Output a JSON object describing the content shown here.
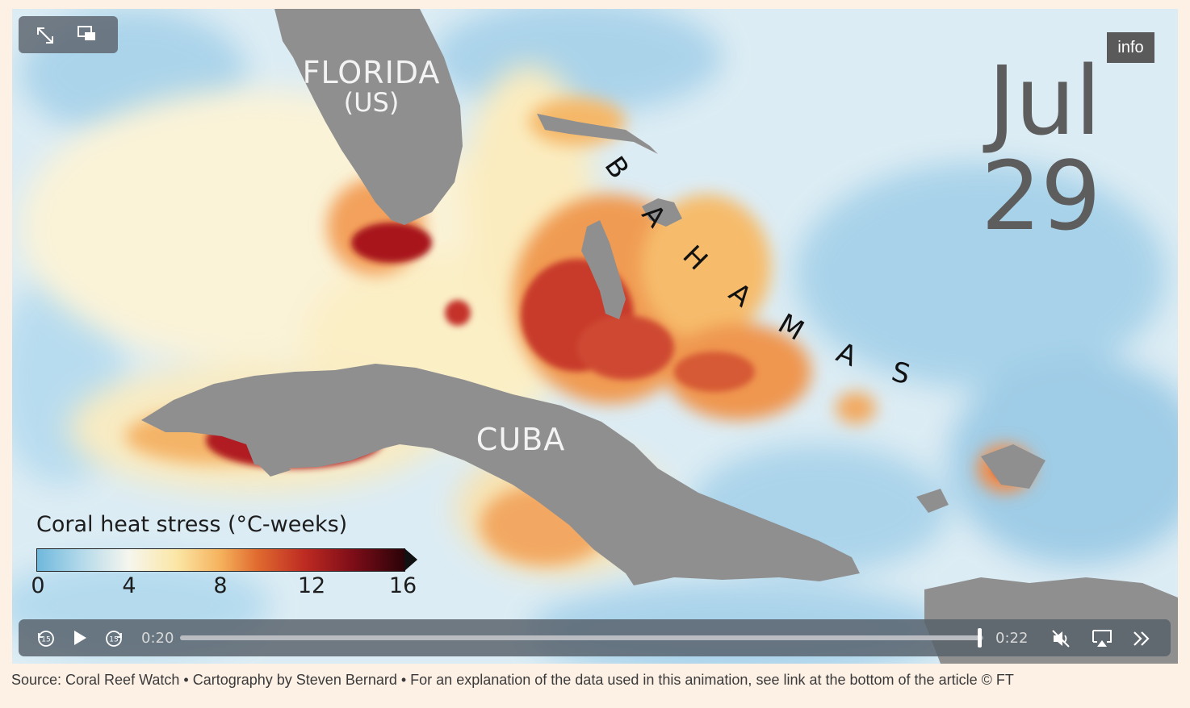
{
  "video": {
    "date_label": "Jul 29",
    "info_label": "info",
    "current_time": "0:20",
    "duration": "0:22",
    "progress": 0.9955
  },
  "map": {
    "labels": {
      "florida": "FLORIDA",
      "florida_sub": "(US)",
      "cuba": "CUBA",
      "bahamas_letters": [
        "B",
        "A",
        "H",
        "A",
        "M",
        "A",
        "S"
      ]
    },
    "colors": {
      "land": "#8f8f8f",
      "sea_cool": "#b7dcef",
      "sea_neutral": "#f4f1e4"
    }
  },
  "legend": {
    "title": "Coral heat stress (°C-weeks)",
    "ticks": [
      "0",
      "4",
      "8",
      "12",
      "16"
    ]
  },
  "controls": {
    "fullscreen_icon": "expand-icon",
    "pip_icon": "picture-in-picture-icon",
    "rewind_icon": "rewind-15-icon",
    "play_icon": "play-icon",
    "forward_icon": "forward-15-icon",
    "mute_icon": "muted-speaker-icon",
    "airplay_icon": "airplay-icon",
    "speed_icon": "fast-forward-icon"
  },
  "caption": "Source: Coral Reef Watch • Cartography by Steven Bernard • For an explanation of the data used in this animation, see link at the bottom of the article © FT"
}
